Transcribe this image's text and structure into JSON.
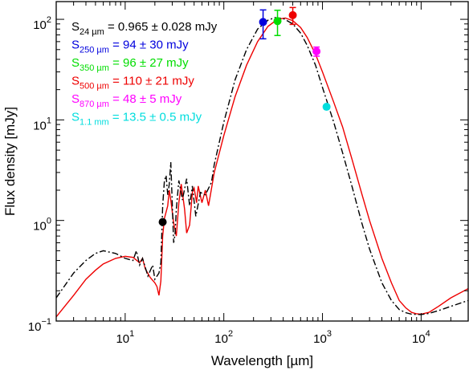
{
  "chart_data": {
    "type": "scatter",
    "title": "",
    "xlabel": "Wavelength [µm]",
    "ylabel": "Flux density [mJy]",
    "x_scale": "log",
    "y_scale": "log",
    "xlim": [
      2,
      30000
    ],
    "ylim": [
      0.1,
      150
    ],
    "x_ticks": [
      {
        "value": 10,
        "base": "10",
        "exp": "1"
      },
      {
        "value": 100,
        "base": "10",
        "exp": "2"
      },
      {
        "value": 1000,
        "base": "10",
        "exp": "3"
      },
      {
        "value": 10000,
        "base": "10",
        "exp": "4"
      }
    ],
    "y_ticks": [
      {
        "value": 0.1,
        "base": "10",
        "exp": "−1"
      },
      {
        "value": 1,
        "base": "10",
        "exp": "0"
      },
      {
        "value": 10,
        "base": "10",
        "exp": "1"
      },
      {
        "value": 100,
        "base": "10",
        "exp": "2"
      }
    ],
    "grid": false,
    "legend_position": "top-left",
    "points": [
      {
        "sym": "S",
        "band": "24 µm",
        "rest": " = 0.965 ± 0.028 mJy",
        "x": 24,
        "y": 0.965,
        "yerr": 0.028,
        "color": "#000000"
      },
      {
        "sym": "S",
        "band": "250 µm",
        "rest": " = 94 ± 30 mJy",
        "x": 250,
        "y": 94,
        "yerr": 30,
        "color": "#0000dd"
      },
      {
        "sym": "S",
        "band": "350 µm",
        "rest": " = 96 ± 27 mJy",
        "x": 350,
        "y": 96,
        "yerr": 27,
        "color": "#00dd00"
      },
      {
        "sym": "S",
        "band": "500 µm",
        "rest": " = 110 ± 21 mJy",
        "x": 500,
        "y": 110,
        "yerr": 21,
        "color": "#ee0000"
      },
      {
        "sym": "S",
        "band": "870 µm",
        "rest": " = 48 ± 5 mJy",
        "x": 870,
        "y": 48,
        "yerr": 5,
        "color": "#ff00ff"
      },
      {
        "sym": "S",
        "band": "1.1 mm",
        "rest": " = 13.5 ± 0.5 mJy",
        "x": 1100,
        "y": 13.5,
        "yerr": 0.5,
        "color": "#00dddd"
      }
    ],
    "series": [
      {
        "style": "solid",
        "color": "#ee0000",
        "points": [
          [
            2,
            0.11
          ],
          [
            3,
            0.18
          ],
          [
            4,
            0.26
          ],
          [
            5,
            0.32
          ],
          [
            6,
            0.37
          ],
          [
            8,
            0.42
          ],
          [
            10,
            0.44
          ],
          [
            12,
            0.43
          ],
          [
            14,
            0.38
          ],
          [
            15,
            0.42
          ],
          [
            16,
            0.33
          ],
          [
            18,
            0.27
          ],
          [
            20,
            0.24
          ],
          [
            21,
            0.22
          ],
          [
            22,
            0.18
          ],
          [
            23,
            0.25
          ],
          [
            24,
            0.7
          ],
          [
            25,
            1.05
          ],
          [
            27,
            1.4
          ],
          [
            28,
            2.0
          ],
          [
            29,
            1.6
          ],
          [
            31,
            0.95
          ],
          [
            33,
            0.7
          ],
          [
            35,
            1.5
          ],
          [
            37,
            2.3
          ],
          [
            40,
            1.3
          ],
          [
            42,
            0.75
          ],
          [
            45,
            0.9
          ],
          [
            48,
            1.9
          ],
          [
            50,
            2.1
          ],
          [
            53,
            1.5
          ],
          [
            55,
            2.2
          ],
          [
            60,
            1.5
          ],
          [
            65,
            2.0
          ],
          [
            70,
            1.4
          ],
          [
            80,
            3.0
          ],
          [
            100,
            7.0
          ],
          [
            130,
            17
          ],
          [
            170,
            35
          ],
          [
            220,
            60
          ],
          [
            280,
            85
          ],
          [
            350,
            100
          ],
          [
            420,
            103
          ],
          [
            500,
            97
          ],
          [
            600,
            83
          ],
          [
            700,
            66
          ],
          [
            850,
            45
          ],
          [
            1000,
            30
          ],
          [
            1300,
            15
          ],
          [
            1600,
            8.5
          ],
          [
            2000,
            4.0
          ],
          [
            2500,
            1.85
          ],
          [
            3000,
            1.0
          ],
          [
            4000,
            0.42
          ],
          [
            5000,
            0.24
          ],
          [
            6000,
            0.16
          ],
          [
            7000,
            0.135
          ],
          [
            8000,
            0.122
          ],
          [
            9000,
            0.118
          ],
          [
            10000,
            0.117
          ],
          [
            12000,
            0.122
          ],
          [
            15000,
            0.14
          ],
          [
            20000,
            0.17
          ],
          [
            30000,
            0.21
          ]
        ]
      },
      {
        "style": "dashdot",
        "color": "#000000",
        "points": [
          [
            2,
            0.17
          ],
          [
            3,
            0.3
          ],
          [
            4,
            0.4
          ],
          [
            5,
            0.47
          ],
          [
            6,
            0.5
          ],
          [
            8,
            0.47
          ],
          [
            10,
            0.42
          ],
          [
            12,
            0.4
          ],
          [
            13,
            0.5
          ],
          [
            14,
            0.36
          ],
          [
            15,
            0.42
          ],
          [
            17,
            0.28
          ],
          [
            19,
            0.36
          ],
          [
            20,
            0.26
          ],
          [
            22,
            0.3
          ],
          [
            23,
            0.38
          ],
          [
            24,
            1.4
          ],
          [
            25,
            2.5
          ],
          [
            26,
            2.8
          ],
          [
            27,
            1.8
          ],
          [
            28,
            2.3
          ],
          [
            29,
            3.8
          ],
          [
            30,
            1.5
          ],
          [
            31,
            0.6
          ],
          [
            32,
            0.72
          ],
          [
            33,
            1.3
          ],
          [
            35,
            2.5
          ],
          [
            38,
            1.6
          ],
          [
            42,
            2.6
          ],
          [
            45,
            1.4
          ],
          [
            48,
            2.2
          ],
          [
            52,
            1.1
          ],
          [
            58,
            1.9
          ],
          [
            65,
            1.8
          ],
          [
            75,
            2.4
          ],
          [
            80,
            3.6
          ],
          [
            100,
            9.5
          ],
          [
            130,
            25
          ],
          [
            170,
            50
          ],
          [
            220,
            80
          ],
          [
            280,
            98
          ],
          [
            330,
            104
          ],
          [
            400,
            102
          ],
          [
            500,
            90
          ],
          [
            600,
            73
          ],
          [
            700,
            55
          ],
          [
            850,
            35
          ],
          [
            1000,
            21
          ],
          [
            1300,
            9.5
          ],
          [
            1600,
            4.7
          ],
          [
            2000,
            2.15
          ],
          [
            2500,
            0.95
          ],
          [
            3000,
            0.52
          ],
          [
            4000,
            0.24
          ],
          [
            5000,
            0.16
          ],
          [
            6000,
            0.13
          ],
          [
            7000,
            0.121
          ],
          [
            8000,
            0.117
          ],
          [
            10000,
            0.116
          ],
          [
            12000,
            0.119
          ],
          [
            15000,
            0.127
          ],
          [
            20000,
            0.14
          ],
          [
            30000,
            0.16
          ]
        ]
      }
    ]
  }
}
